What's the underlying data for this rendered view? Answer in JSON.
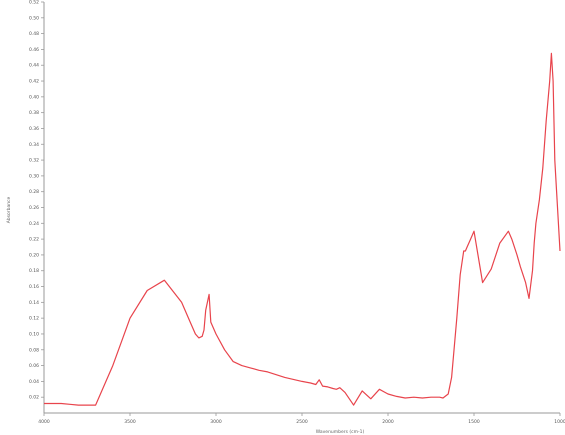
{
  "chart_data": {
    "type": "line",
    "title": "",
    "xlabel": "Wavenumbers (cm-1)",
    "ylabel": "Absorbance",
    "xlim": [
      4000,
      1000
    ],
    "ylim": [
      0.0,
      0.52
    ],
    "x_ticks": [
      "4000",
      "3500",
      "3000",
      "2500",
      "2000",
      "1500",
      "1000"
    ],
    "y_ticks": [
      "0.02",
      "0.04",
      "0.06",
      "0.08",
      "0.10",
      "0.12",
      "0.14",
      "0.16",
      "0.18",
      "0.20",
      "0.22",
      "0.24",
      "0.26",
      "0.28",
      "0.30",
      "0.32",
      "0.34",
      "0.36",
      "0.38",
      "0.40",
      "0.42",
      "0.44",
      "0.46",
      "0.48",
      "0.50",
      "0.52"
    ],
    "grid": false,
    "legend": "none",
    "line_color": "#e8444c",
    "series": [
      {
        "x": [
          4000,
          3900,
          3850,
          3800,
          3700,
          3600,
          3500,
          3400,
          3300,
          3200,
          3150,
          3120,
          3100,
          3080,
          3070,
          3060,
          3050,
          3040,
          3030,
          3000,
          2950,
          2900,
          2850,
          2800,
          2750,
          2700,
          2600,
          2500,
          2450,
          2420,
          2400,
          2380,
          2350,
          2320,
          2300,
          2280,
          2250,
          2200,
          2150,
          2100,
          2050,
          2000,
          1950,
          1900,
          1850,
          1800,
          1750,
          1700,
          1680,
          1650,
          1630,
          1600,
          1580,
          1560,
          1550,
          1540,
          1520,
          1500,
          1450,
          1400,
          1350,
          1300,
          1280,
          1250,
          1230,
          1200,
          1180,
          1160,
          1150,
          1140,
          1120,
          1100,
          1080,
          1060,
          1050,
          1040,
          1030,
          1020,
          1000
        ],
        "y": [
          0.012,
          0.012,
          0.011,
          0.01,
          0.01,
          0.06,
          0.12,
          0.155,
          0.168,
          0.14,
          0.115,
          0.1,
          0.095,
          0.097,
          0.105,
          0.13,
          0.14,
          0.15,
          0.115,
          0.1,
          0.08,
          0.065,
          0.06,
          0.057,
          0.054,
          0.052,
          0.045,
          0.04,
          0.038,
          0.036,
          0.042,
          0.034,
          0.033,
          0.031,
          0.03,
          0.032,
          0.026,
          0.01,
          0.028,
          0.018,
          0.03,
          0.024,
          0.021,
          0.019,
          0.02,
          0.019,
          0.02,
          0.02,
          0.019,
          0.024,
          0.045,
          0.12,
          0.175,
          0.205,
          0.205,
          0.21,
          0.22,
          0.23,
          0.165,
          0.182,
          0.215,
          0.23,
          0.22,
          0.2,
          0.185,
          0.165,
          0.145,
          0.18,
          0.215,
          0.24,
          0.27,
          0.31,
          0.37,
          0.42,
          0.455,
          0.42,
          0.32,
          0.28,
          0.205
        ]
      }
    ]
  }
}
